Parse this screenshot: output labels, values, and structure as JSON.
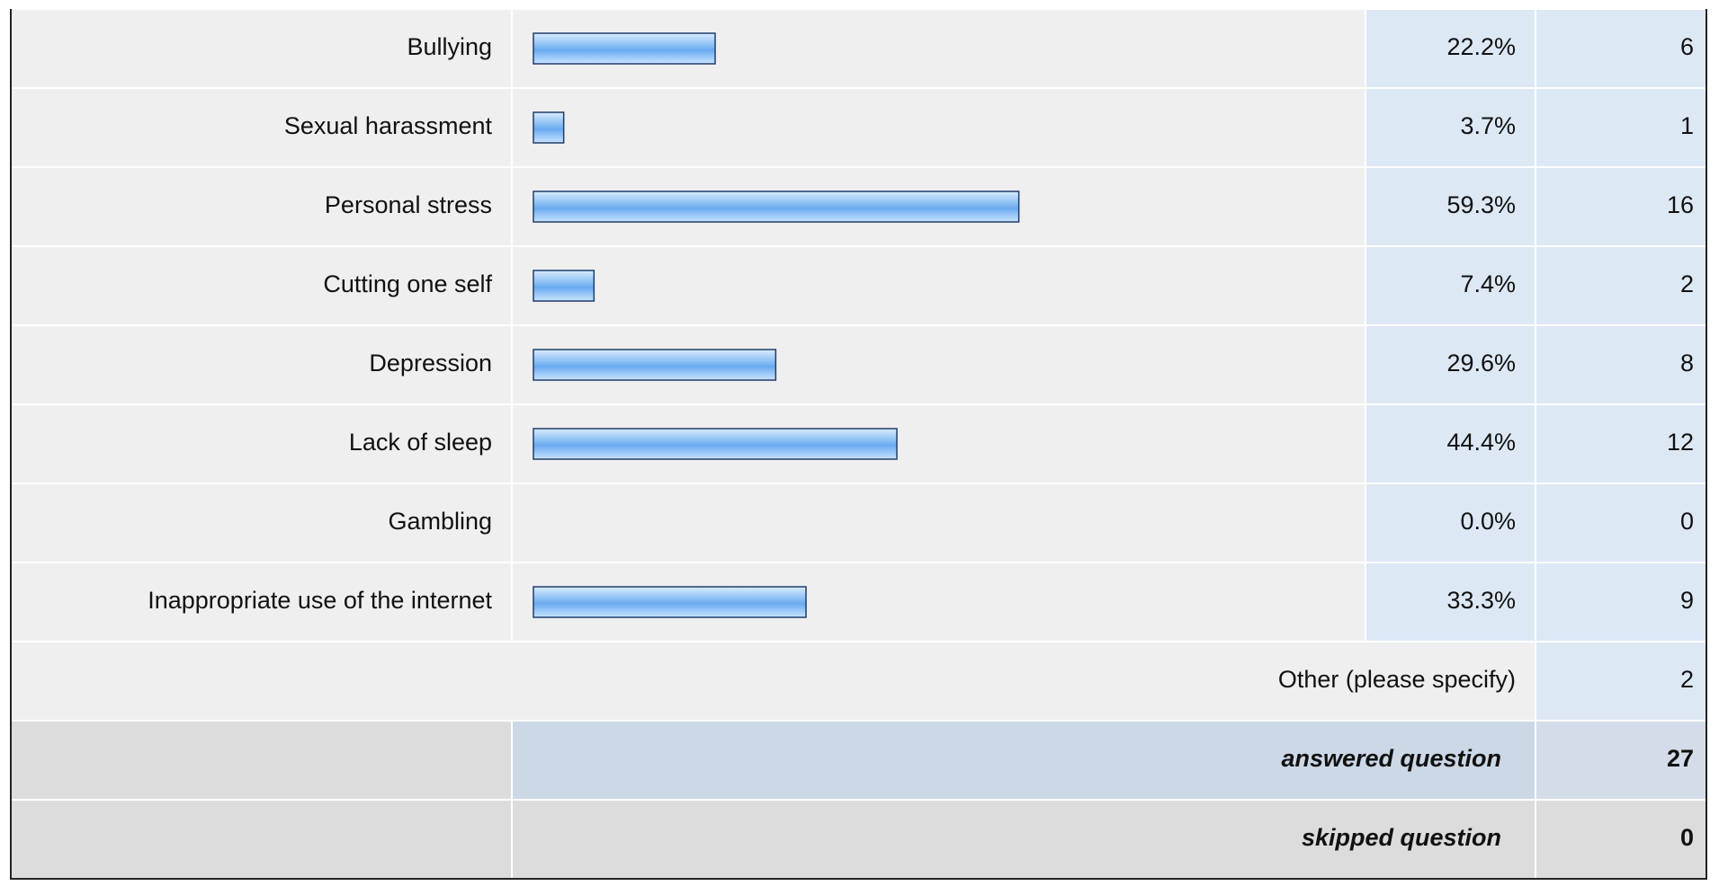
{
  "chart_data": {
    "type": "bar",
    "orientation": "horizontal",
    "categories": [
      "Bullying",
      "Sexual harassment",
      "Personal stress",
      "Cutting one self",
      "Depression",
      "Lack of sleep",
      "Gambling",
      "Inappropriate use of the internet"
    ],
    "values": [
      22.2,
      3.7,
      59.3,
      7.4,
      29.6,
      44.4,
      0.0,
      33.3
    ],
    "value_labels": [
      "22.2%",
      "3.7%",
      "59.3%",
      "7.4%",
      "29.6%",
      "44.4%",
      "0.0%",
      "33.3%"
    ],
    "counts": [
      6,
      1,
      16,
      2,
      8,
      12,
      0,
      9
    ],
    "xlim": [
      0,
      100
    ]
  },
  "summary": {
    "other": {
      "label": "Other (please specify)",
      "count": 2
    },
    "answered": {
      "label": "answered question",
      "count": 27
    },
    "skipped": {
      "label": "skipped question",
      "count": 0
    }
  }
}
